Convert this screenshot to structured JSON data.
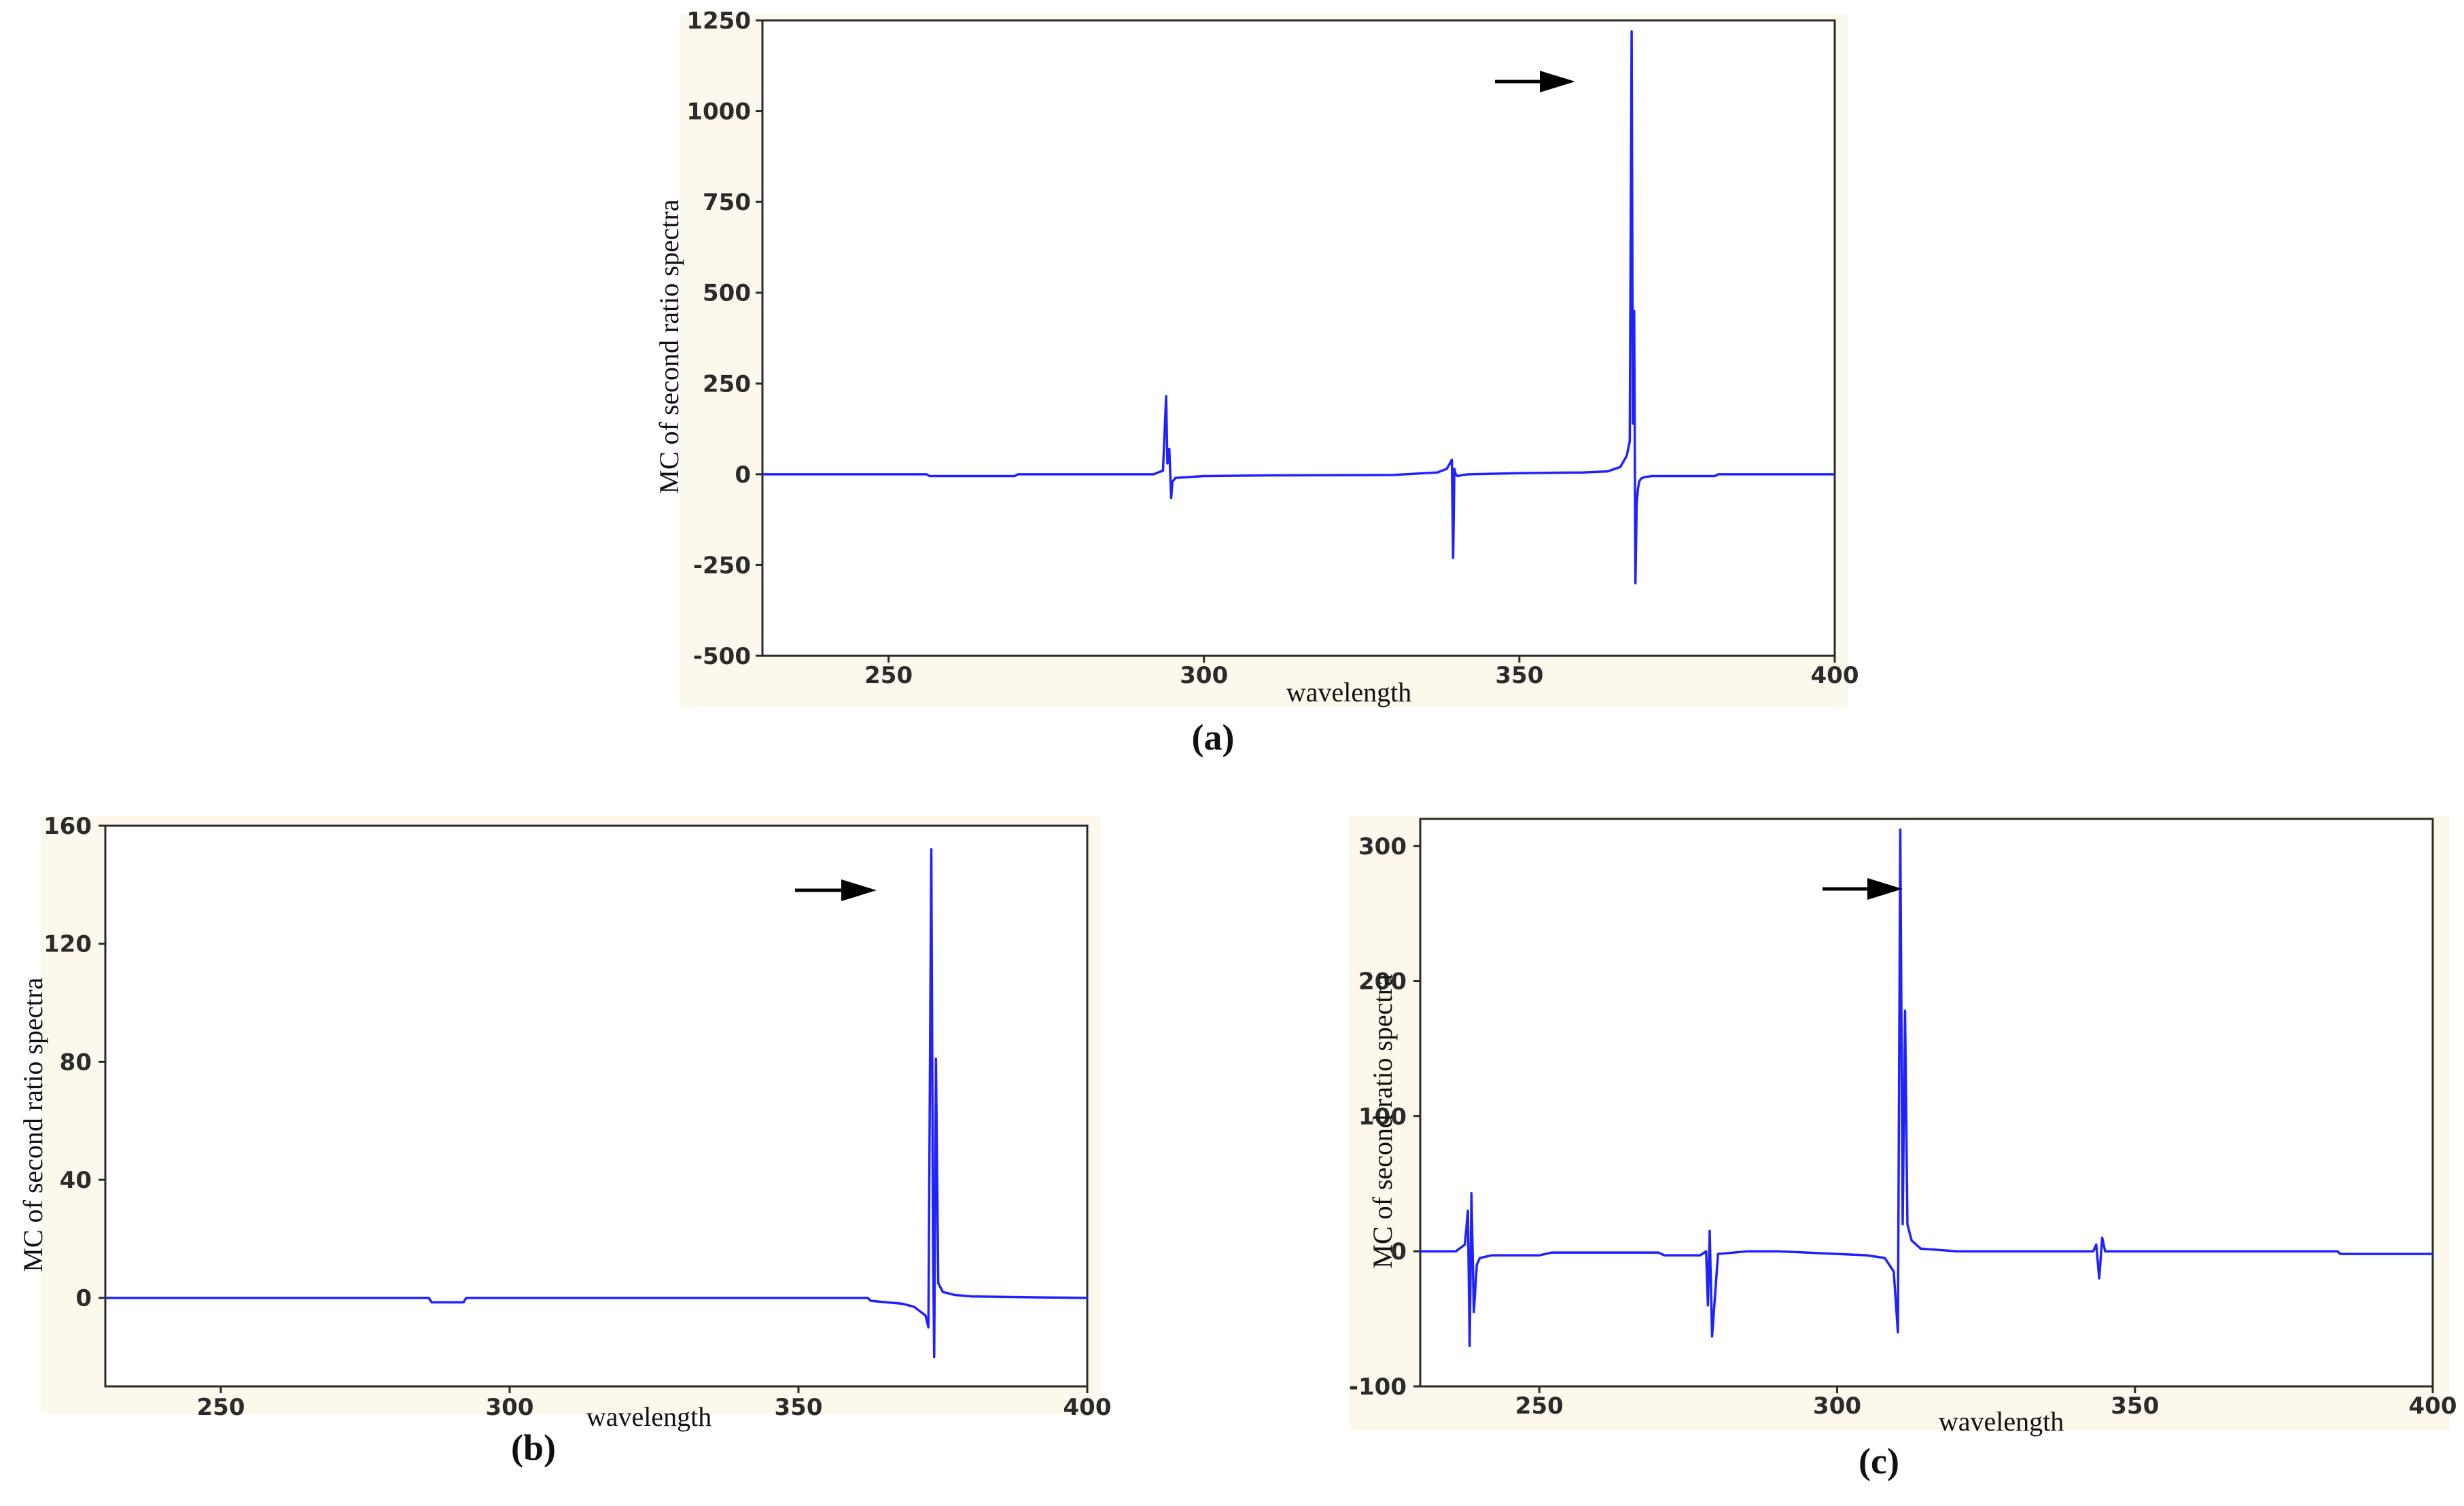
{
  "chart_data": [
    {
      "type": "line",
      "panel_label": "(a)",
      "xlabel": "wavelength",
      "ylabel": "MC of second ratio spectra",
      "xlim": [
        230,
        400
      ],
      "ylim": [
        -500,
        1250
      ],
      "xticks": [
        250,
        300,
        350,
        400
      ],
      "yticks": [
        -500,
        -250,
        0,
        250,
        500,
        750,
        1000,
        1250
      ],
      "series": [
        {
          "color": "#1f22ff",
          "x": [
            230,
            256,
            256.5,
            270,
            270.5,
            292,
            293.5,
            294,
            294.2,
            294.5,
            294.8,
            295,
            295.5,
            300,
            310,
            330,
            337,
            338.5,
            339.3,
            339.5,
            339.7,
            339.9,
            340.2,
            341,
            342,
            350,
            360,
            364,
            366,
            367,
            367.5,
            367.8,
            368,
            368.2,
            368.4,
            368.6,
            368.8,
            369,
            369.3,
            369.8,
            371,
            374,
            381,
            381.5,
            390,
            400
          ],
          "y": [
            0,
            0,
            -5,
            -5,
            0,
            0,
            10,
            215,
            30,
            70,
            -65,
            -20,
            -10,
            -5,
            -3,
            -2,
            5,
            15,
            40,
            -230,
            15,
            0,
            -5,
            -2,
            0,
            3,
            5,
            8,
            20,
            50,
            90,
            1220,
            140,
            450,
            -300,
            -80,
            -40,
            -20,
            -12,
            -8,
            -5,
            -5,
            -5,
            0,
            0,
            0
          ]
        }
      ]
    },
    {
      "type": "line",
      "panel_label": "(b)",
      "xlabel": "wavelength",
      "ylabel": "MC of second ratio spectra",
      "xlim": [
        230,
        400
      ],
      "ylim": [
        -30,
        160
      ],
      "xticks": [
        250,
        300,
        350,
        400
      ],
      "yticks": [
        0,
        40,
        80,
        120,
        160
      ],
      "series": [
        {
          "color": "#1f22ff",
          "x": [
            230,
            286,
            286.5,
            292,
            292.5,
            350,
            362,
            362.5,
            368,
            370,
            372,
            372.5,
            373,
            373.3,
            373.5,
            373.8,
            374.2,
            375,
            377,
            380,
            390,
            400
          ],
          "y": [
            0,
            0,
            -1.5,
            -1.5,
            0,
            0,
            0,
            -1,
            -2,
            -3,
            -6,
            -10,
            152,
            20,
            -20,
            81,
            5,
            2,
            1,
            0.5,
            0.2,
            0
          ]
        }
      ]
    },
    {
      "type": "line",
      "panel_label": "(c)",
      "xlabel": "wavelength",
      "ylabel": "MC of second ratio spectra",
      "xlim": [
        230,
        400
      ],
      "ylim": [
        -100,
        320
      ],
      "xticks": [
        250,
        300,
        350,
        400
      ],
      "yticks": [
        -100,
        0,
        100,
        200,
        300
      ],
      "series": [
        {
          "color": "#1f22ff",
          "x": [
            230,
            236,
            237.5,
            238,
            238.3,
            238.6,
            239,
            239.5,
            240,
            242,
            250,
            252,
            270,
            271,
            277,
            278,
            278.3,
            278.6,
            279,
            280,
            285,
            290,
            300,
            305,
            308,
            309.5,
            310.2,
            310.6,
            311,
            311.4,
            311.8,
            312.5,
            314,
            320,
            343,
            343.5,
            344,
            344.5,
            345,
            350,
            384,
            384.5,
            400
          ],
          "y": [
            0,
            0,
            5,
            30,
            -70,
            43,
            -45,
            -10,
            -5,
            -3,
            -3,
            -1,
            -1,
            -3,
            -3,
            0,
            -40,
            15,
            -63,
            -2,
            0,
            0,
            -2,
            -3,
            -5,
            -15,
            -60,
            312,
            20,
            178,
            20,
            8,
            2,
            0,
            0,
            5,
            -20,
            10,
            0,
            0,
            0,
            -2,
            -2
          ]
        }
      ]
    }
  ]
}
